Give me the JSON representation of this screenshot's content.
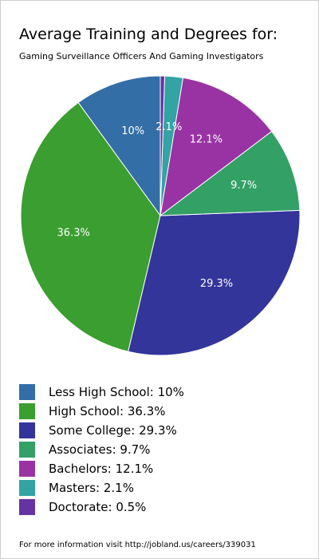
{
  "page": {
    "title": "Average Training and Degrees for:",
    "subtitle": "Gaming Surveillance Officers And Gaming Investigators",
    "footer": "For more information visit http://jobland.us/careers/339031"
  },
  "chart_data": {
    "type": "pie",
    "title": "Average Training and Degrees for:",
    "subtitle": "Gaming Surveillance Officers And Gaming Investigators",
    "unit": "%",
    "start_angle_deg": 90,
    "direction": "counterclockwise",
    "slices": [
      {
        "key": "less-high-school",
        "name": "Less High School",
        "value": 10,
        "label": "10%",
        "legend": "Less High School: 10%",
        "color": "#336ea6"
      },
      {
        "key": "high-school",
        "name": "High School",
        "value": 36.3,
        "label": "36.3%",
        "legend": "High School: 36.3%",
        "color": "#3b9e30"
      },
      {
        "key": "some-college",
        "name": "Some College",
        "value": 29.3,
        "label": "29.3%",
        "legend": "Some College: 29.3%",
        "color": "#33359b"
      },
      {
        "key": "associates",
        "name": "Associates",
        "value": 9.7,
        "label": "9.7%",
        "legend": "Associates: 9.7%",
        "color": "#33a066"
      },
      {
        "key": "bachelors",
        "name": "Bachelors",
        "value": 12.1,
        "label": "12.1%",
        "legend": "Bachelors: 12.1%",
        "color": "#9933a3"
      },
      {
        "key": "masters",
        "name": "Masters",
        "value": 2.1,
        "label": "2.1%",
        "legend": "Masters: 2.1%",
        "color": "#33a3a3"
      },
      {
        "key": "doctorate",
        "name": "Doctorate",
        "value": 0.5,
        "label": "",
        "legend": "Doctorate: 0.5%",
        "color": "#6633a3"
      }
    ]
  }
}
